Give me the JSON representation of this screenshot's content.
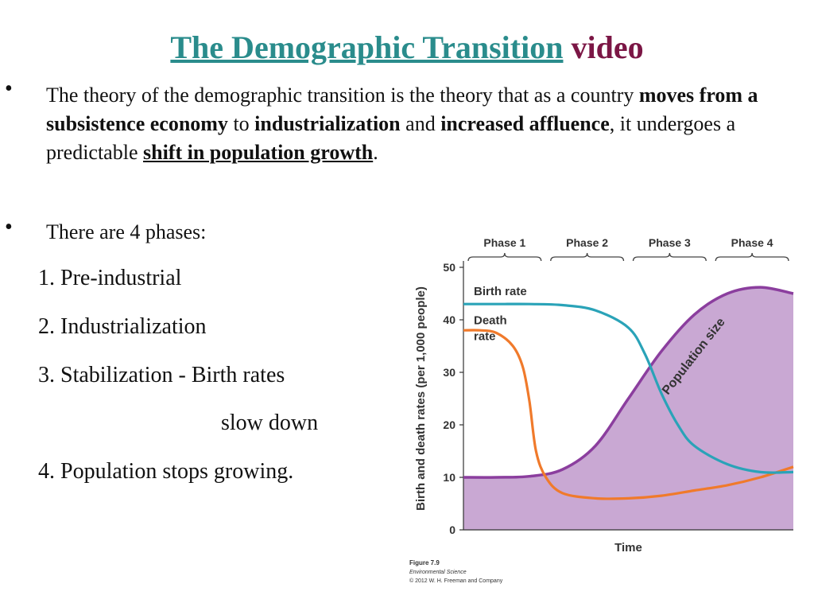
{
  "title": {
    "link_text": "The Demographic Transition",
    "rest": " video"
  },
  "bullets": [
    {
      "parts": [
        {
          "t": "The theory of the demographic transition is the theory that as a country "
        },
        {
          "t": "moves from a subsistence economy",
          "b": true
        },
        {
          "t": " to "
        },
        {
          "t": "industrialization",
          "b": true
        },
        {
          "t": " and "
        },
        {
          "t": "increased affluence",
          "b": true
        },
        {
          "t": ", it undergoes a predictable "
        },
        {
          "t": "shift in population growth",
          "b": true,
          "u": true
        },
        {
          "t": "."
        }
      ]
    },
    {
      "text": "There are 4 phases:"
    }
  ],
  "phases_list": [
    "1. Pre-industrial",
    "2. Industrialization",
    "3. Stabilization - Birth rates",
    "slow down",
    "4.  Population stops growing."
  ],
  "chart_data": {
    "type": "line",
    "phases": [
      "Phase 1",
      "Phase 2",
      "Phase 3",
      "Phase 4"
    ],
    "ylabel": "Birth and death rates (per 1,000 people)",
    "xlabel": "Time",
    "yticks": [
      0,
      10,
      20,
      30,
      40,
      50
    ],
    "ylim": [
      0,
      50
    ],
    "series": [
      {
        "name": "Birth rate",
        "color": "#2aa3b8",
        "x": [
          0,
          10,
          20,
          30,
          40,
          50,
          55,
          60,
          65,
          70,
          80,
          90,
          100
        ],
        "y": [
          43,
          43,
          43,
          42.8,
          41.8,
          38.5,
          33.5,
          26,
          20,
          16,
          12.5,
          11,
          11
        ]
      },
      {
        "name": "Death rate",
        "color": "#f07a2b",
        "x": [
          0,
          5,
          10,
          15,
          18,
          20,
          22,
          25,
          30,
          40,
          50,
          60,
          70,
          80,
          90,
          100
        ],
        "y": [
          38,
          38,
          37.5,
          35,
          31,
          24.5,
          15,
          10,
          7,
          6,
          6,
          6.5,
          7.5,
          8.5,
          10,
          12
        ]
      },
      {
        "name": "Population size",
        "color": "#8b3e9e",
        "fill": "#c9a8d3",
        "x": [
          0,
          10,
          20,
          30,
          40,
          50,
          60,
          70,
          80,
          90,
          100
        ],
        "y": [
          10,
          10,
          10.2,
          11.5,
          16,
          25,
          34,
          41,
          45,
          46.2,
          45
        ]
      }
    ],
    "caption": [
      "Figure 7.9",
      "Environmental Science",
      "© 2012 W. H. Freeman and Company"
    ]
  }
}
